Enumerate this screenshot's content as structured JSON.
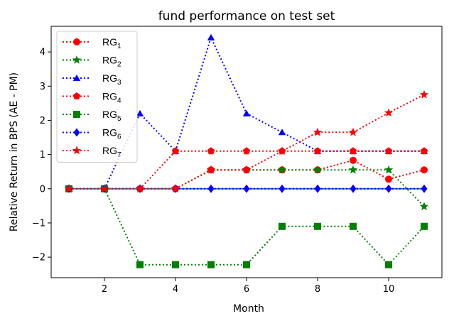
{
  "chart_data": {
    "type": "line",
    "title": "fund performance on test set",
    "xlabel": "Month",
    "ylabel": "Relative Return in BPS (AE - PM)",
    "xlim": [
      0.5,
      11.5
    ],
    "ylim": [
      -2.6,
      4.75
    ],
    "xticks": [
      2,
      4,
      6,
      8,
      10
    ],
    "yticks": [
      -2,
      -1,
      0,
      1,
      2,
      3,
      4
    ],
    "grid": false,
    "legend_position": "top-left",
    "x": [
      1,
      2,
      3,
      4,
      5,
      6,
      7,
      8,
      9,
      10,
      11
    ],
    "series": [
      {
        "name": "RG",
        "subscript": "1",
        "color": "#ff0000",
        "marker": "circle",
        "values": [
          0,
          0,
          0,
          0,
          0.55,
          0.55,
          0.55,
          0.55,
          0.83,
          0.28,
          0.55
        ]
      },
      {
        "name": "RG",
        "subscript": "2",
        "color": "#008000",
        "marker": "star",
        "values": [
          0,
          0,
          0,
          0,
          0.55,
          0.55,
          0.55,
          0.55,
          0.55,
          0.55,
          -0.52
        ]
      },
      {
        "name": "RG",
        "subscript": "3",
        "color": "#0000ff",
        "marker": "triangle",
        "values": [
          0,
          0,
          2.2,
          1.1,
          4.42,
          2.2,
          1.65,
          1.1,
          1.1,
          1.1,
          1.1
        ]
      },
      {
        "name": "RG",
        "subscript": "4",
        "color": "#ff0000",
        "marker": "pentagon",
        "values": [
          0,
          0,
          0,
          1.1,
          1.1,
          1.1,
          1.1,
          1.1,
          1.1,
          1.1,
          1.1
        ]
      },
      {
        "name": "RG",
        "subscript": "5",
        "color": "#008000",
        "marker": "square",
        "values": [
          0,
          0,
          -2.22,
          -2.22,
          -2.22,
          -2.22,
          -1.1,
          -1.1,
          -1.1,
          -2.22,
          -1.1
        ]
      },
      {
        "name": "RG",
        "subscript": "6",
        "color": "#0000ff",
        "marker": "diamond",
        "values": [
          0,
          0,
          0,
          0,
          0,
          0,
          0,
          0,
          0,
          0,
          0
        ]
      },
      {
        "name": "RG",
        "subscript": "7",
        "color": "#ff0000",
        "marker": "star",
        "values": [
          0,
          0,
          0,
          0,
          0.55,
          0.55,
          1.1,
          1.65,
          1.65,
          2.22,
          2.75
        ]
      }
    ],
    "horizontal_line": {
      "y": 0,
      "color": "#1f77b4"
    }
  }
}
